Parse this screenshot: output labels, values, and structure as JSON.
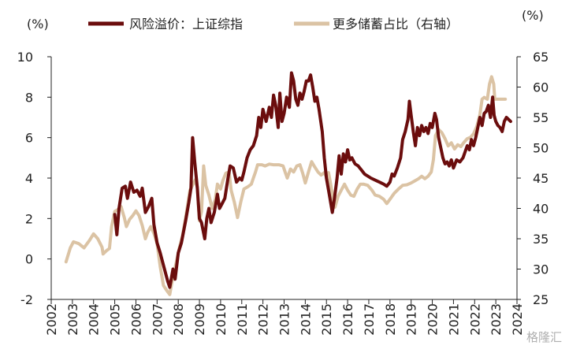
{
  "chart_data": {
    "type": "line",
    "title": "",
    "y_left": {
      "unit": "(%)",
      "min": -2,
      "max": 10,
      "ticks": [
        -2,
        0,
        2,
        4,
        6,
        8,
        10
      ]
    },
    "y_right": {
      "unit": "(%)",
      "min": 25,
      "max": 65,
      "ticks": [
        25,
        30,
        35,
        40,
        45,
        50,
        55,
        60,
        65
      ]
    },
    "x_axis": {
      "min": 2002,
      "max": 2024,
      "ticks": [
        "2002",
        "2003",
        "2004",
        "2005",
        "2006",
        "2007",
        "2008",
        "2009",
        "2010",
        "2011",
        "2012",
        "2013",
        "2014",
        "2015",
        "2016",
        "2017",
        "2018",
        "2019",
        "2020",
        "2021",
        "2022",
        "2023",
        "2024"
      ]
    },
    "legend_position": "top",
    "grid": false,
    "series": [
      {
        "name": "风险溢价：上证综指",
        "axis": "left",
        "color": "#6b0d0d",
        "points": [
          [
            2005.0,
            2.2
          ],
          [
            2005.1,
            1.2
          ],
          [
            2005.2,
            2.5
          ],
          [
            2005.35,
            3.5
          ],
          [
            2005.5,
            3.6
          ],
          [
            2005.6,
            3.0
          ],
          [
            2005.75,
            3.8
          ],
          [
            2005.9,
            3.3
          ],
          [
            2006.05,
            3.4
          ],
          [
            2006.2,
            3.1
          ],
          [
            2006.3,
            3.5
          ],
          [
            2006.45,
            2.3
          ],
          [
            2006.6,
            2.6
          ],
          [
            2006.75,
            3.0
          ],
          [
            2006.85,
            1.7
          ],
          [
            2007.0,
            0.8
          ],
          [
            2007.15,
            0.3
          ],
          [
            2007.35,
            -0.5
          ],
          [
            2007.5,
            -1.1
          ],
          [
            2007.6,
            -1.4
          ],
          [
            2007.75,
            -0.5
          ],
          [
            2007.85,
            -1.0
          ],
          [
            2008.0,
            0.3
          ],
          [
            2008.15,
            0.8
          ],
          [
            2008.35,
            1.9
          ],
          [
            2008.5,
            2.8
          ],
          [
            2008.6,
            3.5
          ],
          [
            2008.68,
            6.0
          ],
          [
            2008.78,
            4.8
          ],
          [
            2008.9,
            3.5
          ],
          [
            2009.0,
            2.0
          ],
          [
            2009.1,
            1.8
          ],
          [
            2009.25,
            1.0
          ],
          [
            2009.35,
            2.0
          ],
          [
            2009.45,
            2.5
          ],
          [
            2009.55,
            1.8
          ],
          [
            2009.7,
            2.3
          ],
          [
            2009.85,
            3.2
          ],
          [
            2009.95,
            2.5
          ],
          [
            2010.05,
            2.7
          ],
          [
            2010.2,
            3.0
          ],
          [
            2010.35,
            4.0
          ],
          [
            2010.45,
            4.6
          ],
          [
            2010.6,
            4.5
          ],
          [
            2010.75,
            3.8
          ],
          [
            2010.9,
            4.0
          ],
          [
            2011.0,
            3.9
          ],
          [
            2011.1,
            4.3
          ],
          [
            2011.25,
            5.0
          ],
          [
            2011.4,
            5.4
          ],
          [
            2011.55,
            5.6
          ],
          [
            2011.7,
            6.1
          ],
          [
            2011.8,
            7.0
          ],
          [
            2011.9,
            6.5
          ],
          [
            2012.0,
            7.4
          ],
          [
            2012.15,
            6.8
          ],
          [
            2012.3,
            7.5
          ],
          [
            2012.4,
            7.0
          ],
          [
            2012.5,
            8.1
          ],
          [
            2012.6,
            7.6
          ],
          [
            2012.72,
            6.5
          ],
          [
            2012.8,
            8.2
          ],
          [
            2012.9,
            6.8
          ],
          [
            2013.0,
            7.2
          ],
          [
            2013.12,
            8.0
          ],
          [
            2013.25,
            7.5
          ],
          [
            2013.35,
            9.2
          ],
          [
            2013.45,
            8.8
          ],
          [
            2013.55,
            7.9
          ],
          [
            2013.65,
            7.6
          ],
          [
            2013.75,
            8.2
          ],
          [
            2013.85,
            7.9
          ],
          [
            2013.95,
            8.3
          ],
          [
            2014.05,
            8.8
          ],
          [
            2014.15,
            8.8
          ],
          [
            2014.25,
            9.1
          ],
          [
            2014.35,
            8.5
          ],
          [
            2014.45,
            7.8
          ],
          [
            2014.55,
            8.0
          ],
          [
            2014.65,
            7.4
          ],
          [
            2014.8,
            6.3
          ],
          [
            2014.9,
            5.0
          ],
          [
            2015.0,
            4.0
          ],
          [
            2015.1,
            3.4
          ],
          [
            2015.18,
            2.9
          ],
          [
            2015.28,
            2.3
          ],
          [
            2015.38,
            3.0
          ],
          [
            2015.5,
            4.0
          ],
          [
            2015.6,
            5.1
          ],
          [
            2015.7,
            4.2
          ],
          [
            2015.8,
            5.2
          ],
          [
            2015.9,
            4.8
          ],
          [
            2016.0,
            5.4
          ],
          [
            2016.1,
            4.9
          ],
          [
            2016.2,
            5.0
          ],
          [
            2016.35,
            4.7
          ],
          [
            2016.5,
            4.6
          ],
          [
            2016.65,
            4.4
          ],
          [
            2016.8,
            4.2
          ],
          [
            2016.95,
            4.1
          ],
          [
            2017.1,
            4.0
          ],
          [
            2017.3,
            3.9
          ],
          [
            2017.5,
            3.8
          ],
          [
            2017.7,
            3.7
          ],
          [
            2017.85,
            3.6
          ],
          [
            2018.0,
            3.8
          ],
          [
            2018.1,
            4.2
          ],
          [
            2018.2,
            4.1
          ],
          [
            2018.35,
            4.5
          ],
          [
            2018.5,
            5.0
          ],
          [
            2018.6,
            5.9
          ],
          [
            2018.72,
            6.3
          ],
          [
            2018.85,
            6.9
          ],
          [
            2018.92,
            7.8
          ],
          [
            2019.0,
            7.1
          ],
          [
            2019.1,
            6.3
          ],
          [
            2019.2,
            5.6
          ],
          [
            2019.3,
            6.5
          ],
          [
            2019.4,
            6.1
          ],
          [
            2019.5,
            6.6
          ],
          [
            2019.6,
            6.3
          ],
          [
            2019.7,
            6.5
          ],
          [
            2019.8,
            6.2
          ],
          [
            2019.9,
            6.7
          ],
          [
            2020.0,
            6.5
          ],
          [
            2020.12,
            7.2
          ],
          [
            2020.2,
            6.9
          ],
          [
            2020.3,
            6.0
          ],
          [
            2020.4,
            5.5
          ],
          [
            2020.5,
            5.0
          ],
          [
            2020.6,
            4.7
          ],
          [
            2020.7,
            4.8
          ],
          [
            2020.8,
            4.6
          ],
          [
            2020.9,
            4.9
          ],
          [
            2021.0,
            4.5
          ],
          [
            2021.15,
            4.9
          ],
          [
            2021.3,
            4.8
          ],
          [
            2021.45,
            5.0
          ],
          [
            2021.55,
            5.3
          ],
          [
            2021.65,
            5.6
          ],
          [
            2021.75,
            5.4
          ],
          [
            2021.85,
            5.9
          ],
          [
            2021.95,
            5.6
          ],
          [
            2022.05,
            6.0
          ],
          [
            2022.15,
            6.5
          ],
          [
            2022.25,
            7.0
          ],
          [
            2022.35,
            6.6
          ],
          [
            2022.45,
            7.2
          ],
          [
            2022.55,
            7.3
          ],
          [
            2022.65,
            7.6
          ],
          [
            2022.75,
            7.0
          ],
          [
            2022.85,
            8.0
          ],
          [
            2022.92,
            7.1
          ],
          [
            2023.0,
            6.8
          ],
          [
            2023.1,
            6.6
          ],
          [
            2023.2,
            6.5
          ],
          [
            2023.3,
            6.3
          ],
          [
            2023.4,
            6.8
          ],
          [
            2023.5,
            7.0
          ],
          [
            2023.6,
            6.9
          ],
          [
            2023.7,
            6.8
          ]
        ]
      },
      {
        "name": "更多储蓄占比（右轴）",
        "axis": "right",
        "color": "#dbc3a4",
        "points": [
          [
            2002.7,
            31.2
          ],
          [
            2002.9,
            33.5
          ],
          [
            2003.05,
            34.5
          ],
          [
            2003.3,
            34.2
          ],
          [
            2003.55,
            33.5
          ],
          [
            2003.8,
            34.7
          ],
          [
            2004.0,
            35.8
          ],
          [
            2004.2,
            35.0
          ],
          [
            2004.4,
            33.6
          ],
          [
            2004.45,
            32.5
          ],
          [
            2004.6,
            33.0
          ],
          [
            2004.75,
            33.4
          ],
          [
            2004.85,
            37.0
          ],
          [
            2005.0,
            39.5
          ],
          [
            2005.15,
            39.8
          ],
          [
            2005.3,
            40.3
          ],
          [
            2005.45,
            38.5
          ],
          [
            2005.55,
            37.0
          ],
          [
            2005.7,
            38.2
          ],
          [
            2005.85,
            38.8
          ],
          [
            2006.0,
            39.6
          ],
          [
            2006.15,
            38.8
          ],
          [
            2006.3,
            37.2
          ],
          [
            2006.45,
            35.0
          ],
          [
            2006.55,
            36.0
          ],
          [
            2006.7,
            37.0
          ],
          [
            2006.85,
            35.9
          ],
          [
            2007.0,
            34.2
          ],
          [
            2007.15,
            30.4
          ],
          [
            2007.3,
            27.3
          ],
          [
            2007.45,
            26.5
          ],
          [
            2007.6,
            25.8
          ],
          [
            2007.75,
            28.8
          ],
          [
            2007.9,
            31.0
          ],
          [
            2008.05,
            33.5
          ],
          [
            2008.2,
            35.5
          ],
          [
            2008.35,
            38.5
          ],
          [
            2008.55,
            43.0
          ],
          [
            2008.7,
            44.0
          ],
          [
            2008.8,
            44.7
          ],
          [
            2008.9,
            43.5
          ],
          [
            2009.0,
            38.0
          ],
          [
            2009.1,
            39.5
          ],
          [
            2009.2,
            47.0
          ],
          [
            2009.3,
            43.8
          ],
          [
            2009.45,
            42.2
          ],
          [
            2009.6,
            40.0
          ],
          [
            2009.75,
            41.5
          ],
          [
            2009.85,
            44.0
          ],
          [
            2010.0,
            43.2
          ],
          [
            2010.1,
            44.5
          ],
          [
            2010.25,
            45.8
          ],
          [
            2010.4,
            46.0
          ],
          [
            2010.5,
            43.0
          ],
          [
            2010.65,
            41.0
          ],
          [
            2010.8,
            38.5
          ],
          [
            2010.95,
            41.0
          ],
          [
            2011.1,
            43.2
          ],
          [
            2011.3,
            43.6
          ],
          [
            2011.45,
            44.0
          ],
          [
            2011.55,
            45.0
          ],
          [
            2011.65,
            46.0
          ],
          [
            2011.75,
            47.2
          ],
          [
            2011.95,
            47.2
          ],
          [
            2012.1,
            47.0
          ],
          [
            2012.3,
            47.3
          ],
          [
            2012.5,
            47.2
          ],
          [
            2012.75,
            47.2
          ],
          [
            2012.95,
            47.0
          ],
          [
            2013.05,
            46.0
          ],
          [
            2013.15,
            45.0
          ],
          [
            2013.3,
            46.5
          ],
          [
            2013.45,
            46.0
          ],
          [
            2013.6,
            47.0
          ],
          [
            2013.75,
            47.2
          ],
          [
            2013.88,
            45.8
          ],
          [
            2014.0,
            44.2
          ],
          [
            2014.15,
            46.0
          ],
          [
            2014.3,
            47.7
          ],
          [
            2014.45,
            46.8
          ],
          [
            2014.6,
            46.0
          ],
          [
            2014.75,
            45.5
          ],
          [
            2014.9,
            45.9
          ],
          [
            2015.0,
            45.2
          ],
          [
            2015.1,
            45.9
          ],
          [
            2015.2,
            44.0
          ],
          [
            2015.3,
            41.8
          ],
          [
            2015.4,
            40.2
          ],
          [
            2015.55,
            42.0
          ],
          [
            2015.7,
            43.0
          ],
          [
            2015.85,
            44.0
          ],
          [
            2016.0,
            43.0
          ],
          [
            2016.15,
            42.2
          ],
          [
            2016.3,
            42.0
          ],
          [
            2016.45,
            43.2
          ],
          [
            2016.6,
            44.0
          ],
          [
            2016.75,
            44.0
          ],
          [
            2016.95,
            43.8
          ],
          [
            2017.15,
            43.0
          ],
          [
            2017.3,
            42.2
          ],
          [
            2017.5,
            42.0
          ],
          [
            2017.7,
            41.5
          ],
          [
            2017.85,
            40.8
          ],
          [
            2018.0,
            41.5
          ],
          [
            2018.2,
            42.5
          ],
          [
            2018.4,
            43.2
          ],
          [
            2018.6,
            43.8
          ],
          [
            2018.8,
            43.9
          ],
          [
            2019.0,
            44.2
          ],
          [
            2019.2,
            44.6
          ],
          [
            2019.35,
            44.9
          ],
          [
            2019.5,
            45.3
          ],
          [
            2019.65,
            44.9
          ],
          [
            2019.8,
            45.3
          ],
          [
            2019.95,
            46.0
          ],
          [
            2020.05,
            48.0
          ],
          [
            2020.15,
            52.0
          ],
          [
            2020.3,
            53.0
          ],
          [
            2020.45,
            52.5
          ],
          [
            2020.6,
            51.5
          ],
          [
            2020.75,
            50.3
          ],
          [
            2020.9,
            50.8
          ],
          [
            2021.05,
            49.8
          ],
          [
            2021.2,
            50.5
          ],
          [
            2021.35,
            50.2
          ],
          [
            2021.5,
            50.9
          ],
          [
            2021.65,
            51.5
          ],
          [
            2021.8,
            51.7
          ],
          [
            2021.95,
            52.3
          ],
          [
            2022.1,
            53.5
          ],
          [
            2022.25,
            55.5
          ],
          [
            2022.35,
            58.0
          ],
          [
            2022.45,
            58.3
          ],
          [
            2022.6,
            58.0
          ],
          [
            2022.7,
            60.5
          ],
          [
            2022.8,
            61.7
          ],
          [
            2022.9,
            60.5
          ],
          [
            2022.95,
            58.0
          ],
          [
            2023.1,
            58.0
          ],
          [
            2023.3,
            58.0
          ],
          [
            2023.45,
            58.0
          ]
        ]
      }
    ]
  },
  "watermark": "格隆汇"
}
